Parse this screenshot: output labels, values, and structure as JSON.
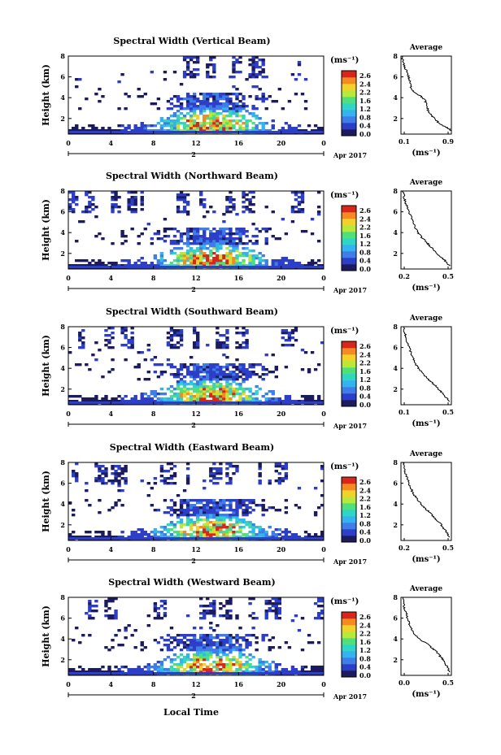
{
  "figure": {
    "bottom_xlabel": "Local Time",
    "colormap": [
      "#1b1b5e",
      "#2d3fc8",
      "#3f7de8",
      "#34b3f0",
      "#2fd6c6",
      "#4fe07c",
      "#b8e83a",
      "#f2d22a",
      "#f58a22",
      "#d8261c"
    ],
    "cell_outline": "#0a0a3a"
  },
  "chart_data": [
    {
      "type": "heatmap",
      "title": "Spectral Width (Vertical Beam)",
      "ylabel": "Height (km)",
      "xticks": [
        "0",
        "4",
        "8",
        "12",
        "16",
        "20",
        "0"
      ],
      "date_marker": "2",
      "date_label": "Apr 2017",
      "xlim": [
        0,
        24
      ],
      "ylim": [
        0.5,
        8
      ],
      "yticks": [
        "2",
        "4",
        "6",
        "8"
      ],
      "colorbar": {
        "label": "(ms⁻¹)",
        "ticks": [
          "2.6",
          "2.4",
          "2.2",
          "1.6",
          "1.2",
          "0.8",
          "0.4",
          "0.0"
        ],
        "range": [
          0,
          2.8
        ]
      },
      "profile": {
        "title": "Average",
        "xlabel": "(ms⁻¹)",
        "xticks": [
          "0.1",
          "0.9"
        ],
        "xlim": [
          0.1,
          0.9
        ],
        "ylim": [
          0.5,
          8
        ],
        "yticks": [
          "2",
          "4",
          "6",
          "8"
        ],
        "points": [
          [
            0.12,
            8
          ],
          [
            0.13,
            7.5
          ],
          [
            0.15,
            7
          ],
          [
            0.2,
            6.5
          ],
          [
            0.22,
            6
          ],
          [
            0.24,
            5.5
          ],
          [
            0.26,
            5
          ],
          [
            0.3,
            4.6
          ],
          [
            0.4,
            4.2
          ],
          [
            0.48,
            3.8
          ],
          [
            0.5,
            3.4
          ],
          [
            0.52,
            3
          ],
          [
            0.54,
            2.6
          ],
          [
            0.6,
            2.2
          ],
          [
            0.66,
            1.8
          ],
          [
            0.72,
            1.5
          ],
          [
            0.8,
            1.2
          ],
          [
            0.86,
            1.0
          ],
          [
            0.9,
            0.8
          ]
        ]
      }
    },
    {
      "type": "heatmap",
      "title": "Spectral Width (Northward Beam)",
      "ylabel": "Height (km)",
      "xticks": [
        "0",
        "4",
        "8",
        "12",
        "16",
        "20",
        "0"
      ],
      "date_marker": "2",
      "date_label": "Apr 2017",
      "xlim": [
        0,
        24
      ],
      "ylim": [
        0.5,
        8
      ],
      "yticks": [
        "2",
        "4",
        "6",
        "8"
      ],
      "colorbar": {
        "label": "(ms⁻¹)",
        "ticks": [
          "2.6",
          "2.4",
          "2.2",
          "1.6",
          "1.2",
          "0.8",
          "0.4",
          "0.0"
        ],
        "range": [
          0,
          2.8
        ]
      },
      "profile": {
        "title": "Average",
        "xlabel": "(ms⁻¹)",
        "xticks": [
          "0.2",
          "0.5"
        ],
        "xlim": [
          0.1,
          0.6
        ],
        "ylim": [
          0.5,
          8
        ],
        "yticks": [
          "2",
          "4",
          "6",
          "8"
        ],
        "points": [
          [
            0.12,
            8
          ],
          [
            0.13,
            7.5
          ],
          [
            0.14,
            7
          ],
          [
            0.16,
            6.5
          ],
          [
            0.18,
            6
          ],
          [
            0.2,
            5.5
          ],
          [
            0.22,
            5
          ],
          [
            0.24,
            4.5
          ],
          [
            0.27,
            4
          ],
          [
            0.3,
            3.6
          ],
          [
            0.34,
            3.2
          ],
          [
            0.38,
            2.8
          ],
          [
            0.42,
            2.4
          ],
          [
            0.46,
            2
          ],
          [
            0.5,
            1.6
          ],
          [
            0.55,
            1.2
          ],
          [
            0.58,
            0.8
          ]
        ]
      }
    },
    {
      "type": "heatmap",
      "title": "Spectral Width (Southward Beam)",
      "ylabel": "Height (km)",
      "xticks": [
        "0",
        "4",
        "8",
        "12",
        "16",
        "20",
        "0"
      ],
      "date_marker": "2",
      "date_label": "Apr 2017",
      "xlim": [
        0,
        24
      ],
      "ylim": [
        0.5,
        8
      ],
      "yticks": [
        "2",
        "4",
        "6",
        "8"
      ],
      "colorbar": {
        "label": "(ms⁻¹)",
        "ticks": [
          "2.6",
          "2.4",
          "2.2",
          "1.6",
          "1.2",
          "0.8",
          "0.4",
          "0.0"
        ],
        "range": [
          0,
          2.8
        ]
      },
      "profile": {
        "title": "Average",
        "xlabel": "(ms⁻¹)",
        "xticks": [
          "0.1",
          "0.5"
        ],
        "xlim": [
          0.05,
          0.6
        ],
        "ylim": [
          0.5,
          8
        ],
        "yticks": [
          "2",
          "4",
          "6",
          "8"
        ],
        "points": [
          [
            0.08,
            8
          ],
          [
            0.09,
            7.5
          ],
          [
            0.1,
            7
          ],
          [
            0.12,
            6.5
          ],
          [
            0.14,
            6
          ],
          [
            0.16,
            5.5
          ],
          [
            0.18,
            5
          ],
          [
            0.2,
            4.5
          ],
          [
            0.24,
            4
          ],
          [
            0.28,
            3.6
          ],
          [
            0.32,
            3.2
          ],
          [
            0.36,
            2.8
          ],
          [
            0.42,
            2.4
          ],
          [
            0.46,
            2
          ],
          [
            0.5,
            1.6
          ],
          [
            0.54,
            1.2
          ],
          [
            0.58,
            0.8
          ]
        ]
      }
    },
    {
      "type": "heatmap",
      "title": "Spectral Width (Eastward Beam)",
      "ylabel": "Height (km)",
      "xticks": [
        "0",
        "4",
        "8",
        "12",
        "16",
        "20",
        "0"
      ],
      "date_marker": "2",
      "date_label": "Apr 2017",
      "xlim": [
        0,
        24
      ],
      "ylim": [
        0.5,
        8
      ],
      "yticks": [
        "2",
        "4",
        "6",
        "8"
      ],
      "colorbar": {
        "label": "(ms⁻¹)",
        "ticks": [
          "2.6",
          "2.4",
          "2.2",
          "1.6",
          "1.2",
          "0.8",
          "0.4",
          "0.0"
        ],
        "range": [
          0,
          2.8
        ]
      },
      "profile": {
        "title": "Average",
        "xlabel": "(ms⁻¹)",
        "xticks": [
          "0.2",
          "0.5"
        ],
        "xlim": [
          0.1,
          0.6
        ],
        "ylim": [
          0.5,
          8
        ],
        "yticks": [
          "2",
          "4",
          "6",
          "8"
        ],
        "points": [
          [
            0.12,
            8
          ],
          [
            0.13,
            7.5
          ],
          [
            0.14,
            7
          ],
          [
            0.16,
            6.5
          ],
          [
            0.18,
            6
          ],
          [
            0.2,
            5.5
          ],
          [
            0.22,
            5
          ],
          [
            0.26,
            4.5
          ],
          [
            0.3,
            4
          ],
          [
            0.34,
            3.6
          ],
          [
            0.38,
            3.2
          ],
          [
            0.42,
            2.8
          ],
          [
            0.46,
            2.4
          ],
          [
            0.5,
            2
          ],
          [
            0.53,
            1.6
          ],
          [
            0.56,
            1.2
          ],
          [
            0.58,
            0.8
          ]
        ]
      }
    },
    {
      "type": "heatmap",
      "title": "Spectral Width (Westward Beam)",
      "ylabel": "Height (km)",
      "xticks": [
        "0",
        "4",
        "8",
        "12",
        "16",
        "20",
        "0"
      ],
      "date_marker": "2",
      "date_label": "Apr 2017",
      "xlim": [
        0,
        24
      ],
      "ylim": [
        0.5,
        8
      ],
      "yticks": [
        "2",
        "4",
        "6",
        "8"
      ],
      "colorbar": {
        "label": "(ms⁻¹)",
        "ticks": [
          "2.6",
          "2.4",
          "2.2",
          "1.6",
          "1.2",
          "0.8",
          "0.4",
          "0.0"
        ],
        "range": [
          0,
          2.8
        ]
      },
      "profile": {
        "title": "Average",
        "xlabel": "(ms⁻¹)",
        "xticks": [
          "0.0",
          "0.5"
        ],
        "xlim": [
          0,
          0.6
        ],
        "ylim": [
          0.5,
          8
        ],
        "yticks": [
          "2",
          "4",
          "6",
          "8"
        ],
        "points": [
          [
            0.02,
            8
          ],
          [
            0.03,
            7.5
          ],
          [
            0.04,
            7
          ],
          [
            0.06,
            6.5
          ],
          [
            0.08,
            6
          ],
          [
            0.1,
            5.5
          ],
          [
            0.12,
            5
          ],
          [
            0.16,
            4.5
          ],
          [
            0.22,
            4
          ],
          [
            0.3,
            3.6
          ],
          [
            0.36,
            3.2
          ],
          [
            0.42,
            2.8
          ],
          [
            0.46,
            2.4
          ],
          [
            0.5,
            2
          ],
          [
            0.53,
            1.6
          ],
          [
            0.56,
            1.2
          ],
          [
            0.58,
            0.8
          ]
        ]
      }
    }
  ]
}
